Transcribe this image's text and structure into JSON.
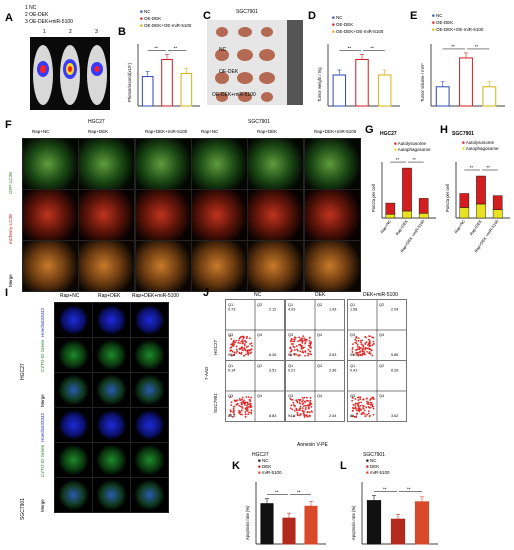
{
  "panelA": {
    "label": "A",
    "legend": [
      "1  NC",
      "2  OE-DEK",
      "3  OE-DEK+miR-5100"
    ],
    "numbers": [
      "1",
      "2",
      "3"
    ]
  },
  "panelB": {
    "label": "B",
    "legend": [
      "NC",
      "OE-DEK",
      "OE-DEK+OE-miR-5100"
    ],
    "ylabel": "Photon/second(x10⁷)",
    "sig": [
      "**",
      "**"
    ]
  },
  "panelC": {
    "label": "C",
    "title": "SGC7901",
    "rows": [
      "NC",
      "OE-DEK",
      "OE-DEK+miR-5100"
    ]
  },
  "panelD": {
    "label": "D",
    "legend": [
      "NC",
      "OE-DEK",
      "OE-DEK+OE-miR-5100"
    ],
    "ylabel": "Tumor weight / mg",
    "sig": [
      "**",
      "**"
    ]
  },
  "panelE": {
    "label": "E",
    "legend": [
      "NC",
      "OE-DEK",
      "OE-DEK+OE-miR-5100"
    ],
    "ylabel": "Tumor volume / mm³",
    "sig": [
      "**",
      "**"
    ]
  },
  "panelF": {
    "label": "F",
    "groups": [
      "HGC27",
      "SGC7901"
    ],
    "cols": [
      "Rap+NC",
      "Rap+DEK",
      "Rap+DEK+miR-5100",
      "Rap+NC",
      "Rap+DEK",
      "Rap+DEK+miR-5100"
    ],
    "rows": [
      "GFP-LC3B",
      "mCherry-LC3B",
      "Merge"
    ]
  },
  "panelG": {
    "label": "G",
    "title": "HGC27",
    "legend": [
      "Autolysosome",
      "Autophagosome"
    ],
    "ylabel": "Puncta per cell",
    "categories": [
      "Rap+NC",
      "Rap+DEK",
      "Rap+DEK +miR-5100"
    ],
    "sig": [
      "**",
      "**"
    ]
  },
  "panelH": {
    "label": "H",
    "title": "SGC7901",
    "legend": [
      "Autolysosome",
      "Autophagosome"
    ],
    "ylabel": "Puncta per cell",
    "categories": [
      "Rap+NC",
      "Rap+DEK",
      "Rap+DEK +miR-5100"
    ],
    "sig": [
      "**",
      "**"
    ]
  },
  "panelI": {
    "label": "I",
    "cols": [
      "Rap+NC",
      "Rap+DEK",
      "Rap+DEK+miR-5100"
    ],
    "groups": [
      "HGC27",
      "SGC7901"
    ],
    "rows": [
      "Hoechst33342",
      "CYTO-ID Green",
      "Merge"
    ]
  },
  "panelJ": {
    "label": "J",
    "cols": [
      "NC",
      "DEK",
      "DEK+miR-5100"
    ],
    "rows": [
      "HGC27",
      "SGC7901"
    ],
    "xlabel": "Annexin V-PE",
    "ylabel": "7-AAD",
    "quads": [
      [
        [
          "0.73",
          "2.12",
          "90.9",
          "6.26"
        ],
        [
          "4.03",
          "1.43",
          "90.9",
          "3.63"
        ],
        [
          "1.58",
          "2.04",
          "90.5",
          "5.86"
        ]
      ],
      [
        [
          "0.14",
          "3.51",
          "88.5",
          "8.83"
        ],
        [
          "0.21",
          "2.36",
          "94.9",
          "2.44"
        ],
        [
          "0.41",
          "6.26",
          "89.7",
          "3.62"
        ]
      ]
    ]
  },
  "panelK": {
    "label": "K",
    "title": "HGC27",
    "legend": [
      "NC",
      "DEK",
      "miR-5100"
    ],
    "ylabel": "Apoptosis rate (%)",
    "sig": [
      "**",
      "**"
    ]
  },
  "panelL": {
    "label": "L",
    "title": "SGC7901",
    "legend": [
      "NC",
      "DEK",
      "miR-5100"
    ],
    "ylabel": "Apoptosis rate (%)",
    "sig": [
      "**",
      "**"
    ]
  },
  "chart_data": [
    {
      "type": "bar",
      "name_ref": "B",
      "categories": [
        "NC",
        "OE-DEK",
        "OE-DEK+OE-miR-5100"
      ],
      "values": [
        3.8,
        6.0,
        4.2
      ],
      "ylabel": "Photon/second(x10⁷)",
      "ylim": [
        0,
        8
      ]
    },
    {
      "type": "bar",
      "name_ref": "D",
      "categories": [
        "NC",
        "OE-DEK",
        "OE-DEK+OE-miR-5100"
      ],
      "values": [
        600,
        900,
        600
      ],
      "ylabel": "Tumor weight / mg",
      "ylim": [
        0,
        1200
      ]
    },
    {
      "type": "bar",
      "name_ref": "E",
      "categories": [
        "NC",
        "OE-DEK",
        "OE-DEK+OE-miR-5100"
      ],
      "values": [
        620,
        1550,
        620
      ],
      "ylabel": "Tumor volume / mm³",
      "ylim": [
        0,
        2000
      ]
    },
    {
      "type": "bar",
      "name_ref": "G",
      "categories": [
        "Rap+NC",
        "Rap+DEK",
        "Rap+DEK +miR-5100"
      ],
      "series": [
        {
          "name": "Autophagosome",
          "values": [
            8,
            15,
            10
          ]
        },
        {
          "name": "Autolysosome",
          "values": [
            24,
            92,
            32
          ]
        }
      ],
      "ylim": [
        0,
        120
      ]
    },
    {
      "type": "bar",
      "name_ref": "H",
      "categories": [
        "Rap+NC",
        "Rap+DEK",
        "Rap+DEK +miR-5100"
      ],
      "series": [
        {
          "name": "Autophagosome",
          "values": [
            15,
            20,
            12
          ]
        },
        {
          "name": "Autolysosome",
          "values": [
            20,
            40,
            20
          ]
        }
      ],
      "ylim": [
        0,
        80
      ]
    },
    {
      "type": "bar",
      "name_ref": "K",
      "categories": [
        "NC",
        "DEK",
        "miR-5100"
      ],
      "values": [
        7.8,
        5.0,
        7.3
      ],
      "ylim": [
        0,
        12
      ]
    },
    {
      "type": "bar",
      "name_ref": "L",
      "categories": [
        "NC",
        "DEK",
        "miR-5100"
      ],
      "values": [
        10.5,
        6.0,
        10.2
      ],
      "ylim": [
        0,
        15
      ]
    }
  ]
}
